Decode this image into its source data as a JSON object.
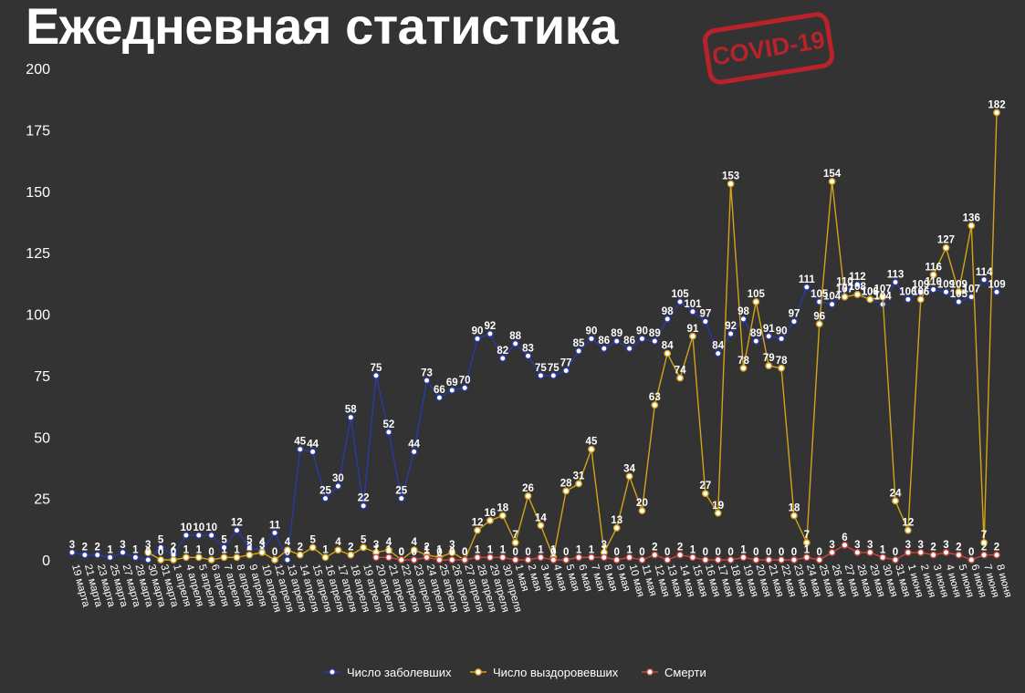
{
  "header": {
    "title": "Ежедневная статистика",
    "stamp": "COVID-19"
  },
  "chart_data": {
    "type": "line",
    "ylim": [
      0,
      200
    ],
    "yticks": [
      0,
      25,
      50,
      75,
      100,
      125,
      150,
      175,
      200
    ],
    "grid": false,
    "legend_position": "bottom",
    "x": [
      "19 марта",
      "21 марта",
      "23 марта",
      "25 марта",
      "27 марта",
      "28 марта",
      "30 марта",
      "31 марта",
      "1 апреля",
      "4 апреля",
      "5 апреля",
      "6 апреля",
      "7 апреля",
      "8 апреля",
      "9 апреля",
      "10 апреля",
      "12 апреля",
      "13 апреля",
      "14 апреля",
      "15 апреля",
      "16 апреля",
      "17 апреля",
      "18 апреля",
      "19 апреля",
      "20 апреля",
      "21 апреля",
      "22 апреля",
      "23 апреля",
      "24 апреля",
      "25 апреля",
      "26 апреля",
      "27 апреля",
      "28 апреля",
      "29 апреля",
      "30 апреля",
      "1 мая",
      "2 мая",
      "3 мая",
      "4 мая",
      "5 мая",
      "6 мая",
      "7 мая",
      "8 мая",
      "9 мая",
      "10 мая",
      "11 мая",
      "12 мая",
      "13 мая",
      "14 мая",
      "15 мая",
      "16 мая",
      "17 мая",
      "18 мая",
      "19 мая",
      "20 мая",
      "21 мая",
      "22 мая",
      "23 мая",
      "24 мая",
      "25 мая",
      "26 мая",
      "27 мая",
      "28 мая",
      "29 мая",
      "30 мая",
      "31 мая",
      "1 июня",
      "2 июня",
      "3 июня",
      "4 июня",
      "5 июня",
      "6 июня",
      "7 июня",
      "8 июня"
    ],
    "series": [
      {
        "name": "Число заболевших",
        "color": "#2b3aa8",
        "values": [
          3,
          2,
          2,
          1,
          3,
          1,
          0,
          5,
          2,
          10,
          10,
          10,
          5,
          12,
          5,
          4,
          11,
          0,
          45,
          44,
          25,
          30,
          58,
          22,
          75,
          52,
          25,
          44,
          73,
          66,
          69,
          70,
          90,
          92,
          82,
          88,
          83,
          75,
          75,
          77,
          85,
          90,
          86,
          89,
          86,
          90,
          89,
          98,
          105,
          101,
          97,
          84,
          92,
          98,
          89,
          91,
          90,
          97,
          111,
          105,
          104,
          110,
          112,
          106,
          104,
          113,
          106,
          109,
          110,
          109,
          105,
          107,
          114,
          109
        ],
        "labels": [
          "3",
          "2",
          "2",
          "1",
          "3",
          "1",
          "0",
          "5",
          "2",
          "10",
          "10",
          "10",
          "5",
          "12",
          "5",
          "4",
          "11",
          "0",
          "45",
          "44",
          "25",
          "30",
          "58",
          "22",
          "75",
          "52",
          "25",
          "44",
          "73",
          "66",
          "69",
          "70",
          "90",
          "92",
          "82",
          "88",
          "83",
          "75",
          "75",
          "77",
          "85",
          "90",
          "86",
          "89",
          "86",
          "90",
          "89",
          "98",
          "105",
          "101",
          "97",
          "84",
          "92",
          "98",
          "89",
          "91",
          "90",
          "97",
          "111",
          "105",
          "104",
          "110",
          "112",
          "106",
          "104",
          "113",
          "106",
          "109",
          "110",
          "109",
          "105",
          "107",
          "114",
          "109"
        ]
      },
      {
        "name": "Число выздоровевших",
        "color": "#d4a418",
        "values": [
          null,
          null,
          null,
          null,
          null,
          null,
          3,
          0,
          0,
          1,
          1,
          0,
          1,
          1,
          2,
          3,
          0,
          4,
          2,
          5,
          1,
          4,
          2,
          5,
          3,
          4,
          0,
          4,
          2,
          1,
          3,
          0,
          12,
          16,
          18,
          7,
          26,
          14,
          1,
          28,
          31,
          45,
          3,
          13,
          34,
          20,
          63,
          84,
          74,
          91,
          27,
          19,
          153,
          78,
          105,
          79,
          78,
          18,
          7,
          96,
          154,
          107,
          108,
          106,
          107,
          24,
          12,
          106,
          116,
          127,
          109,
          136,
          7,
          182
        ],
        "labels": [
          "",
          "",
          "",
          "",
          "",
          "",
          "3",
          "0",
          "0",
          "1",
          "1",
          "0",
          "1",
          "1",
          "2",
          "3",
          "0",
          "4",
          "2",
          "5",
          "1",
          "4",
          "2",
          "5",
          "3",
          "4",
          "0",
          "4",
          "2",
          "1",
          "3",
          "0",
          "12",
          "16",
          "18",
          "7",
          "26",
          "14",
          "1",
          "28",
          "31",
          "45",
          "3",
          "13",
          "34",
          "20",
          "63",
          "84",
          "74",
          "91",
          "27",
          "19",
          "153",
          "78",
          "105",
          "79",
          "78",
          "18",
          "7",
          "96",
          "154",
          "107",
          "108",
          "106",
          "107",
          "24",
          "12",
          "106",
          "116",
          "127",
          "109",
          "136",
          "7",
          "182"
        ]
      },
      {
        "name": "Смерти",
        "color": "#c8463c",
        "values": [
          null,
          null,
          null,
          null,
          null,
          null,
          null,
          null,
          null,
          null,
          null,
          null,
          null,
          null,
          null,
          null,
          null,
          null,
          null,
          null,
          null,
          null,
          null,
          null,
          1,
          1,
          0,
          0,
          1,
          0,
          0,
          0,
          1,
          1,
          1,
          0,
          0,
          1,
          0,
          0,
          1,
          1,
          1,
          0,
          1,
          0,
          2,
          0,
          2,
          1,
          0,
          0,
          0,
          1,
          0,
          0,
          0,
          0,
          1,
          0,
          3,
          6,
          3,
          3,
          1,
          0,
          3,
          3,
          2,
          3,
          2,
          0,
          2,
          2
        ],
        "labels": [
          "",
          "",
          "",
          "",
          "",
          "",
          "",
          "",
          "",
          "",
          "",
          "",
          "",
          "",
          "",
          "",
          "",
          "",
          "",
          "",
          "",
          "",
          "",
          "",
          "1",
          "1",
          "0",
          "0",
          "1",
          "0",
          "0",
          "0",
          "1",
          "1",
          "1",
          "0",
          "0",
          "1",
          "0",
          "0",
          "1",
          "1",
          "1",
          "0",
          "1",
          "0",
          "2",
          "0",
          "2",
          "1",
          "0",
          "0",
          "0",
          "1",
          "0",
          "0",
          "0",
          "0",
          "1",
          "0",
          "3",
          "6",
          "3",
          "3",
          "1",
          "0",
          "3",
          "3",
          "2",
          "3",
          "2",
          "0",
          "2",
          "2"
        ]
      }
    ]
  }
}
